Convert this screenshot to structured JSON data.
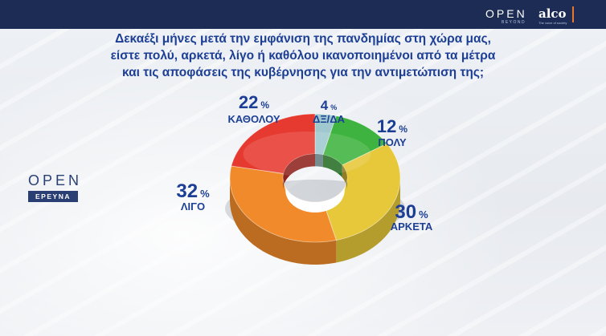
{
  "header": {
    "brand_open": "OPEN",
    "brand_beyond": "BEYOND",
    "brand_alco": "alco",
    "brand_tagline": "The voice of society"
  },
  "question_lines": [
    "Δεκαέξι μήνες μετά την εμφάνιση της πανδημίας στη χώρα μας,",
    "είστε πολύ, αρκετά, λίγο ή καθόλου ικανοποιημένοι από τα μέτρα",
    "και τις αποφάσεις της κυβέρνησης για την αντιμετώπιση της;"
  ],
  "program_logo": {
    "open": "OPEN",
    "erevna": "ΕΡΕΥΝΑ"
  },
  "chart_data": {
    "type": "pie",
    "variant": "donut-3d",
    "categories": [
      "ΔΞ/ΔΑ",
      "ΠΟΛΥ",
      "ΑΡΚΕΤΑ",
      "ΛΙΓΟ",
      "ΚΑΘΟΛΟΥ"
    ],
    "values": [
      4,
      12,
      30,
      32,
      22
    ],
    "unit": "%",
    "colors": [
      "#9fc9cf",
      "#3fb33f",
      "#e7c83a",
      "#f08a2a",
      "#e63a30"
    ],
    "title": ""
  }
}
